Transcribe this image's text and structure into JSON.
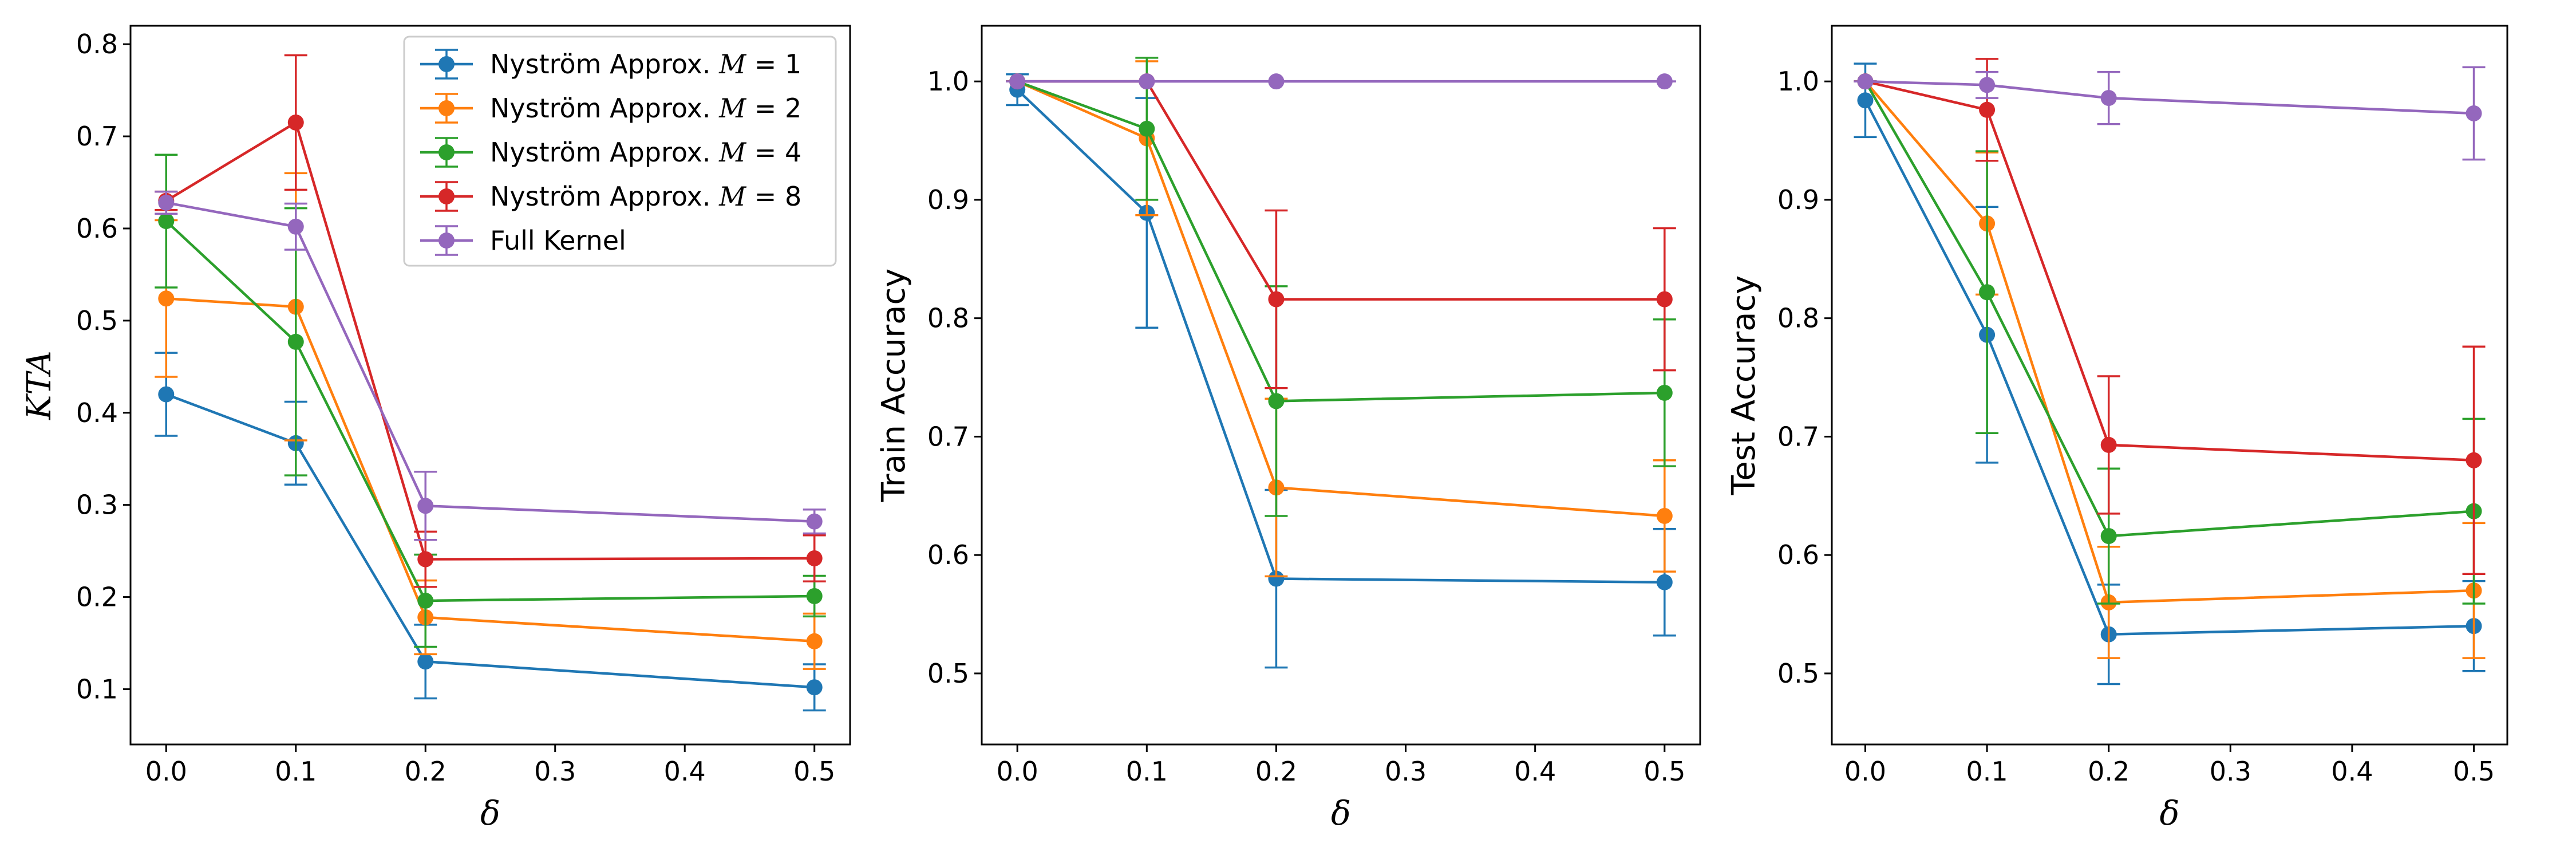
{
  "colors": {
    "series": [
      "#1f77b4",
      "#ff7f0e",
      "#2ca02c",
      "#d62728",
      "#9467bd"
    ]
  },
  "legend_math": [
    {
      "prefix": "Nyström Approx. ",
      "var": "M",
      "eq": " = 1"
    },
    {
      "prefix": "Nyström Approx. ",
      "var": "M",
      "eq": " = 2"
    },
    {
      "prefix": "Nyström Approx. ",
      "var": "M",
      "eq": " = 4"
    },
    {
      "prefix": "Nyström Approx. ",
      "var": "M",
      "eq": " = 8"
    },
    {
      "prefix": "Full Kernel",
      "var": "",
      "eq": ""
    }
  ],
  "chart_data": [
    {
      "type": "line",
      "title": "",
      "xlabel": "δ",
      "ylabel": "KTA",
      "x": [
        0.0,
        0.1,
        0.2,
        0.5
      ],
      "xticks": [
        "0.0",
        "0.1",
        "0.2",
        "0.3",
        "0.4",
        "0.5"
      ],
      "yticks": [
        "0.1",
        "0.2",
        "0.3",
        "0.4",
        "0.5",
        "0.6",
        "0.7",
        "0.8"
      ],
      "xlim": [
        -0.0275,
        0.5275
      ],
      "ylim": [
        0.04,
        0.82
      ],
      "legend": "top-right",
      "series": [
        {
          "name": "Nyström Approx. M = 1",
          "values": [
            0.42,
            0.367,
            0.13,
            0.102
          ],
          "err": [
            0.045,
            0.045,
            0.04,
            0.025
          ]
        },
        {
          "name": "Nyström Approx. M = 2",
          "values": [
            0.524,
            0.515,
            0.178,
            0.152
          ],
          "err": [
            0.085,
            0.145,
            0.04,
            0.03
          ]
        },
        {
          "name": "Nyström Approx. M = 4",
          "values": [
            0.608,
            0.477,
            0.196,
            0.201
          ],
          "err": [
            0.072,
            0.145,
            0.05,
            0.022
          ]
        },
        {
          "name": "Nyström Approx. M = 8",
          "values": [
            0.63,
            0.715,
            0.241,
            0.242
          ],
          "err": [
            0.01,
            0.073,
            0.03,
            0.025
          ]
        },
        {
          "name": "Full Kernel",
          "values": [
            0.628,
            0.602,
            0.299,
            0.282
          ],
          "err": [
            0.012,
            0.025,
            0.037,
            0.013
          ]
        }
      ]
    },
    {
      "type": "line",
      "title": "",
      "xlabel": "δ",
      "ylabel": "Train Accuracy",
      "x": [
        0.0,
        0.1,
        0.2,
        0.5
      ],
      "xticks": [
        "0.0",
        "0.1",
        "0.2",
        "0.3",
        "0.4",
        "0.5"
      ],
      "yticks": [
        "0.5",
        "0.6",
        "0.7",
        "0.8",
        "0.9",
        "1.0"
      ],
      "xlim": [
        -0.0275,
        0.5275
      ],
      "ylim": [
        0.44,
        1.047
      ],
      "legend": "none",
      "series": [
        {
          "name": "Nyström Approx. M = 1",
          "values": [
            0.993,
            0.889,
            0.58,
            0.577
          ],
          "err": [
            0.013,
            0.097,
            0.075,
            0.045
          ]
        },
        {
          "name": "Nyström Approx. M = 2",
          "values": [
            1.0,
            0.952,
            0.657,
            0.633
          ],
          "err": [
            0.0,
            0.065,
            0.075,
            0.047
          ]
        },
        {
          "name": "Nyström Approx. M = 4",
          "values": [
            1.0,
            0.96,
            0.73,
            0.737
          ],
          "err": [
            0.0,
            0.06,
            0.097,
            0.062
          ]
        },
        {
          "name": "Nyström Approx. M = 8",
          "values": [
            1.0,
            1.0,
            0.816,
            0.816
          ],
          "err": [
            0.0,
            0.0,
            0.075,
            0.06
          ]
        },
        {
          "name": "Full Kernel",
          "values": [
            1.0,
            1.0,
            1.0,
            1.0
          ],
          "err": [
            0.0,
            0.0,
            0.0,
            0.0
          ]
        }
      ]
    },
    {
      "type": "line",
      "title": "",
      "xlabel": "δ",
      "ylabel": "Test Accuracy",
      "x": [
        0.0,
        0.1,
        0.2,
        0.5
      ],
      "xticks": [
        "0.0",
        "0.1",
        "0.2",
        "0.3",
        "0.4",
        "0.5"
      ],
      "yticks": [
        "0.5",
        "0.6",
        "0.7",
        "0.8",
        "0.9",
        "1.0"
      ],
      "xlim": [
        -0.0275,
        0.5275
      ],
      "ylim": [
        0.44,
        1.047
      ],
      "legend": "none",
      "series": [
        {
          "name": "Nyström Approx. M = 1",
          "values": [
            0.984,
            0.786,
            0.533,
            0.54
          ],
          "err": [
            0.031,
            0.108,
            0.042,
            0.038
          ]
        },
        {
          "name": "Nyström Approx. M = 2",
          "values": [
            1.0,
            0.88,
            0.56,
            0.57
          ],
          "err": [
            0.0,
            0.06,
            0.047,
            0.057
          ]
        },
        {
          "name": "Nyström Approx. M = 4",
          "values": [
            1.0,
            0.822,
            0.616,
            0.637
          ],
          "err": [
            0.0,
            0.119,
            0.057,
            0.078
          ]
        },
        {
          "name": "Nyström Approx. M = 8",
          "values": [
            1.0,
            0.976,
            0.693,
            0.68
          ],
          "err": [
            0.0,
            0.043,
            0.058,
            0.096
          ]
        },
        {
          "name": "Full Kernel",
          "values": [
            1.0,
            0.997,
            0.986,
            0.973
          ],
          "err": [
            0.0,
            0.011,
            0.022,
            0.039
          ]
        }
      ]
    }
  ]
}
